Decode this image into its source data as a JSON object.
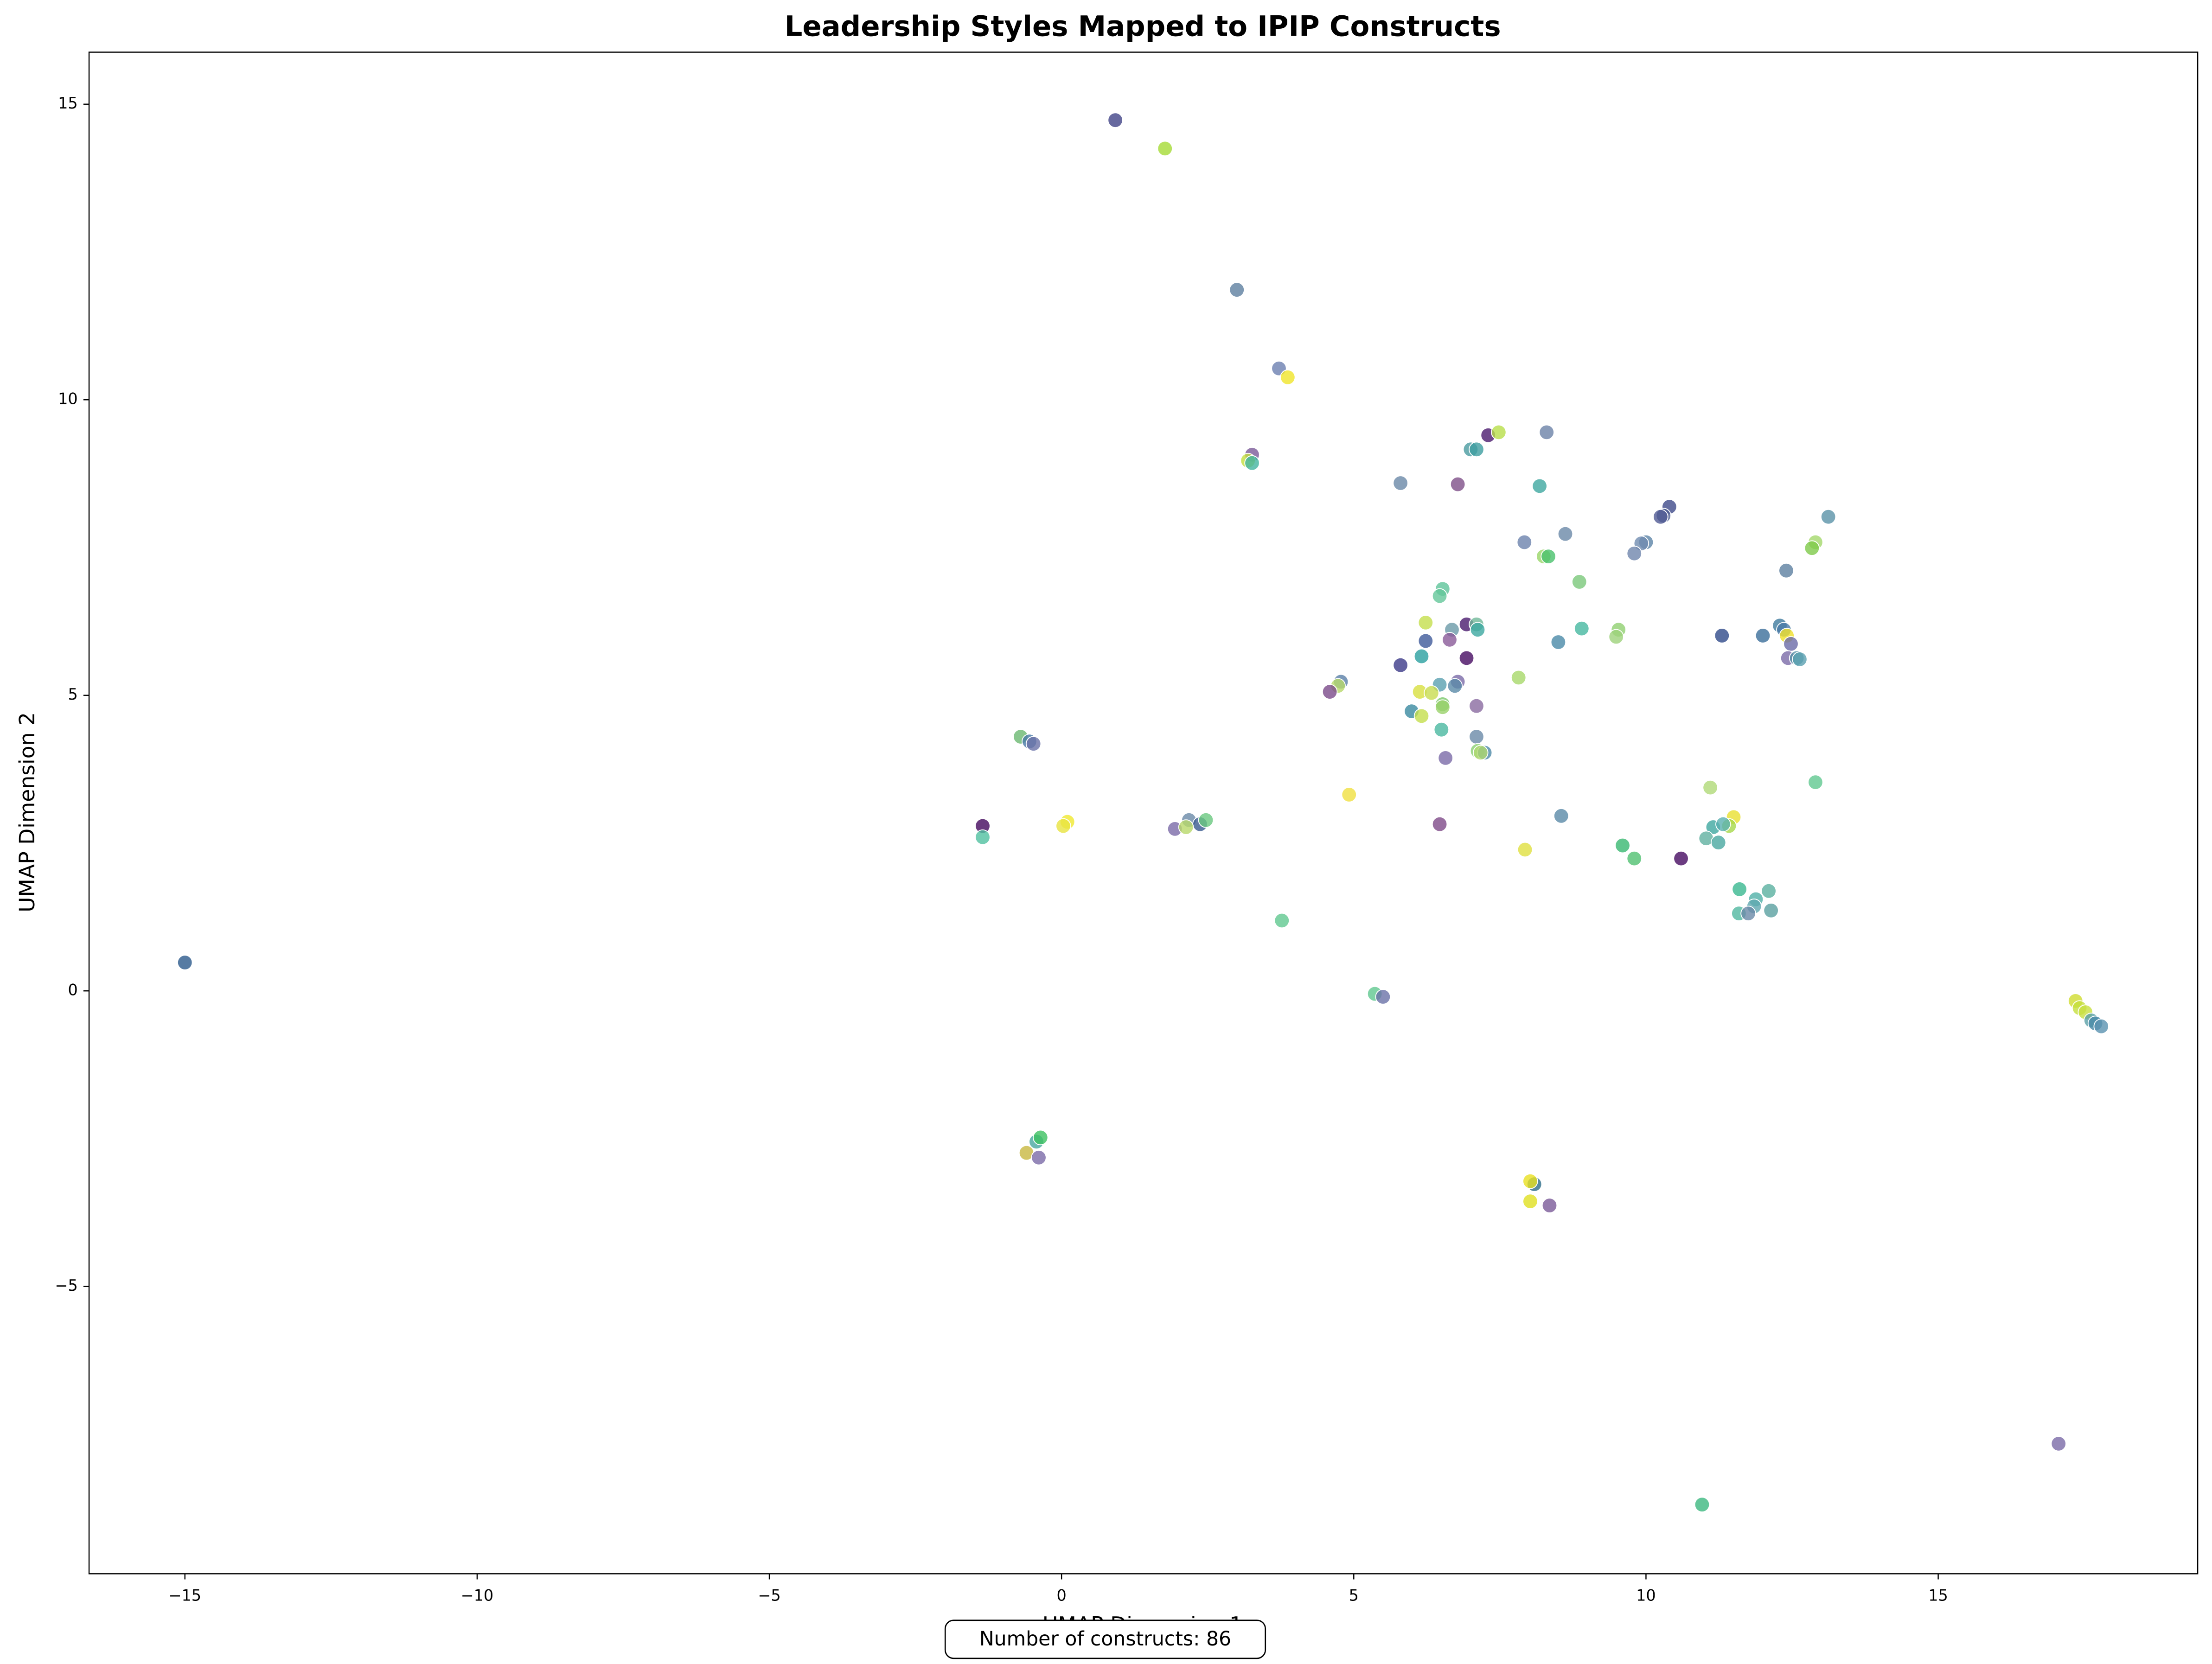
{
  "chart_data": {
    "type": "scatter",
    "title": "Leadership Styles Mapped to IPIP Constructs",
    "xlabel": "UMAP Dimension 1",
    "ylabel": "UMAP Dimension 2",
    "annotation": "Number of constructs: 86",
    "xlim": [
      -16.64,
      19.44
    ],
    "ylim": [
      -9.86,
      15.88
    ],
    "xticks": [
      {
        "value": -15,
        "label": "−15"
      },
      {
        "value": -10,
        "label": "−10"
      },
      {
        "value": -5,
        "label": "−5"
      },
      0,
      5,
      10,
      15
    ],
    "yticks": [
      {
        "value": -5,
        "label": "−5"
      },
      0,
      5,
      10,
      15
    ],
    "grid": false,
    "x": [
      -15,
      0.92,
      1.77,
      3.0,
      3.72,
      3.87,
      3.26,
      3.19,
      3.26,
      5.8,
      7.3,
      7.48,
      7.0,
      7.1,
      8.3,
      6.78,
      8.18,
      10.4,
      10.3,
      10.25,
      13.12,
      8.62,
      7.92,
      10.0,
      9.92,
      9.8,
      12.9,
      12.84,
      8.25,
      8.33,
      12.4,
      8.86,
      6.52,
      6.47,
      6.23,
      6.93,
      7.1,
      7.12,
      6.68,
      8.9,
      9.53,
      9.49,
      12.29,
      12.36,
      12.41,
      12.0,
      11.3,
      12.48,
      8.5,
      6.23,
      6.64,
      6.93,
      6.16,
      12.43,
      12.58,
      12.63,
      5.8,
      7.82,
      6.78,
      6.73,
      6.47,
      4.78,
      4.73,
      4.59,
      6.13,
      6.33,
      6.52,
      7.1,
      6.52,
      5.99,
      6.16,
      6.5,
      7.1,
      7.12,
      7.24,
      7.17,
      6.57,
      -0.7,
      -0.55,
      -0.48,
      11.1,
      12.9,
      4.92,
      8.55,
      6.47,
      -1.35,
      -1.35,
      0.1,
      0.03,
      1.94,
      2.18,
      2.37,
      2.47,
      2.13,
      11.5,
      11.42,
      11.15,
      11.32,
      11.03,
      11.24,
      7.93,
      9.6,
      9.8,
      10.6,
      11.6,
      12.1,
      11.88,
      11.85,
      11.59,
      11.75,
      12.14,
      3.77,
      5.36,
      5.5,
      17.35,
      17.42,
      17.52,
      17.62,
      17.69,
      17.79,
      -0.43,
      -0.36,
      -0.6,
      -0.39,
      8.09,
      8.02,
      8.02,
      8.35,
      17.06,
      10.96
    ],
    "y": [
      0.48,
      14.73,
      14.25,
      11.86,
      10.53,
      10.38,
      9.07,
      8.97,
      8.93,
      8.59,
      9.4,
      9.45,
      9.16,
      9.16,
      9.45,
      8.57,
      8.54,
      8.19,
      8.04,
      8.02,
      8.02,
      7.73,
      7.59,
      7.59,
      7.57,
      7.4,
      7.59,
      7.49,
      7.35,
      7.35,
      7.11,
      6.92,
      6.8,
      6.68,
      6.23,
      6.2,
      6.2,
      6.11,
      6.11,
      6.13,
      6.11,
      5.99,
      6.18,
      6.11,
      6.01,
      6.01,
      6.01,
      5.87,
      5.9,
      5.92,
      5.94,
      5.63,
      5.66,
      5.63,
      5.63,
      5.61,
      5.51,
      5.3,
      5.23,
      5.16,
      5.18,
      5.23,
      5.16,
      5.06,
      5.06,
      5.04,
      4.85,
      4.82,
      4.8,
      4.73,
      4.65,
      4.42,
      4.3,
      4.06,
      4.03,
      4.03,
      3.94,
      4.3,
      4.22,
      4.18,
      3.44,
      3.53,
      3.32,
      2.96,
      2.82,
      2.79,
      2.6,
      2.86,
      2.79,
      2.74,
      2.89,
      2.82,
      2.89,
      2.77,
      2.94,
      2.79,
      2.77,
      2.82,
      2.58,
      2.51,
      2.39,
      2.46,
      2.24,
      2.24,
      1.72,
      1.69,
      1.55,
      1.43,
      1.31,
      1.31,
      1.36,
      1.19,
      -0.05,
      -0.1,
      -0.17,
      -0.29,
      -0.36,
      -0.5,
      -0.55,
      -0.6,
      -2.55,
      -2.48,
      -2.74,
      -2.82,
      -3.27,
      -3.22,
      -3.56,
      -3.63,
      -7.66,
      -8.69
    ],
    "colors": [
      "#2c5a8c",
      "#414487",
      "#a5db36",
      "#5e7fa0",
      "#6b7fb0",
      "#f0e529",
      "#7a5a98",
      "#c3de3f",
      "#42b4a0",
      "#6a88a8",
      "#4b1a6e",
      "#b8de4a",
      "#4a9ba0",
      "#3d9ea0",
      "#6b82a8",
      "#7e4f88",
      "#3ea8a0",
      "#3e4a8a",
      "#4e5c90",
      "#505a94",
      "#5a92a8",
      "#6a88a8",
      "#6b82ac",
      "#5c84a8",
      "#708cb0",
      "#6f86ac",
      "#a4d86c",
      "#7ec94a",
      "#9ad668",
      "#48c06c",
      "#5d80a0",
      "#7ac87a",
      "#5ec49a",
      "#64c79a",
      "#c4de4c",
      "#4a1a6e",
      "#70b898",
      "#3ca8a0",
      "#6a9aa8",
      "#46b8a0",
      "#90d070",
      "#9ed27a",
      "#3f7a9e",
      "#4a7aa8",
      "#f0e029",
      "#3b6e9a",
      "#2f4a8a",
      "#6a6aa8",
      "#4a8aa8",
      "#3e5a9a",
      "#8a5a98",
      "#460b62",
      "#2aa0a0",
      "#7a6aa8",
      "#5a92a8",
      "#5aa0b0",
      "#3c3a88",
      "#a8d86a",
      "#7a6aa8",
      "#5a8aa8",
      "#5aa0b0",
      "#5a80a8",
      "#b8d86a",
      "#7a4a8a",
      "#d8e040",
      "#c8dc50",
      "#7ac86a",
      "#8a6aa0",
      "#9ad26a",
      "#3a8aa0",
      "#c4de4c",
      "#4ab8a0",
      "#6a8aa8",
      "#8ad070",
      "#4e8aa8",
      "#b0d870",
      "#7a6aa8",
      "#6ab870",
      "#4a7aa8",
      "#6a72a8",
      "#b0da78",
      "#60c890",
      "#f0e040",
      "#5a8aa8",
      "#7e4a88",
      "#44095e",
      "#50c0a0",
      "#f0e830",
      "#e8e440",
      "#7a6aa8",
      "#6a8aa8",
      "#3a5a90",
      "#6ac880",
      "#b8d86a",
      "#e8e030",
      "#a6d84a",
      "#3ea8a0",
      "#5ab0b0",
      "#60b0a0",
      "#48a8a0",
      "#e0e040",
      "#38b870",
      "#50c070",
      "#460b62",
      "#3ab890",
      "#5ab0a0",
      "#50b0a8",
      "#60a8b0",
      "#50b8a0",
      "#6a8aa8",
      "#5aa0a0",
      "#60c890",
      "#60c890",
      "#6a72a8",
      "#d0dc30",
      "#c4de3c",
      "#c8e040",
      "#5aa0a8",
      "#4a8aa8",
      "#5a92b0",
      "#48a8a0",
      "#3cc060",
      "#c8b840",
      "#7a6aa8",
      "#2e6e8a",
      "#e8e020",
      "#e0e020",
      "#7a5a98",
      "#7a6aa8",
      "#3cb880"
    ]
  }
}
